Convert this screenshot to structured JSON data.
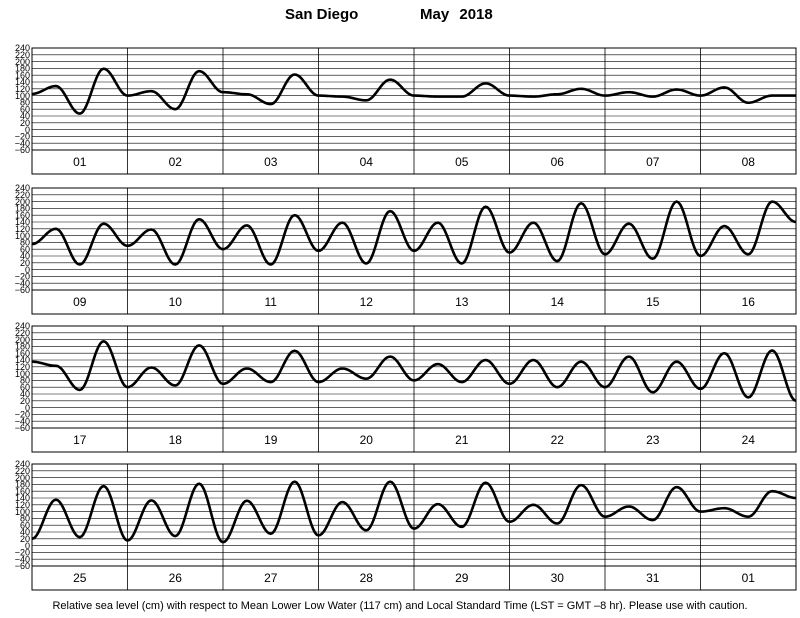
{
  "title": {
    "station": "San Diego",
    "period": "May   2018"
  },
  "footnote": "Relative sea level (cm) with respect to Mean Lower Low Water (117 cm) and Local Standard Time (LST = GMT –8 hr). Please use with caution.",
  "chart_data": {
    "type": "line",
    "xlabel": "",
    "ylabel": "",
    "ylim": [
      -60,
      240
    ],
    "yticks": [
      -60,
      -40,
      -20,
      0,
      20,
      40,
      60,
      80,
      100,
      120,
      140,
      160,
      180,
      200,
      220,
      240
    ],
    "grid": true,
    "panels": [
      {
        "days": [
          "01",
          "02",
          "03",
          "04",
          "05",
          "06",
          "07",
          "08"
        ],
        "x": [
          0,
          0.25,
          0.5,
          0.75,
          1,
          1.25,
          1.5,
          1.75,
          2,
          2.25,
          2.5,
          2.75,
          3,
          3.25,
          3.5,
          3.75,
          4,
          4.25,
          4.5,
          4.75,
          5,
          5.25,
          5.5,
          5.75,
          6,
          6.25,
          6.5,
          6.75,
          7,
          7.25,
          7.5,
          7.75,
          8
        ],
        "values": [
          105,
          128,
          47,
          179,
          100,
          113,
          60,
          172,
          110,
          104,
          75,
          162,
          100,
          97,
          86,
          147,
          100,
          97,
          97,
          136,
          100,
          97,
          104,
          120,
          100,
          110,
          97,
          118,
          100,
          124,
          79,
          100,
          100
        ]
      },
      {
        "days": [
          "09",
          "10",
          "11",
          "12",
          "13",
          "14",
          "15",
          "16"
        ],
        "x": [
          0,
          0.25,
          0.5,
          0.75,
          1,
          1.25,
          1.5,
          1.75,
          2,
          2.25,
          2.5,
          2.75,
          3,
          3.25,
          3.5,
          3.75,
          4,
          4.25,
          4.5,
          4.75,
          5,
          5.25,
          5.5,
          5.75,
          6,
          6.25,
          6.5,
          6.75,
          7,
          7.25,
          7.5,
          7.75,
          8
        ],
        "values": [
          75,
          120,
          15,
          135,
          70,
          118,
          15,
          148,
          60,
          130,
          15,
          160,
          55,
          138,
          18,
          172,
          55,
          138,
          18,
          185,
          50,
          138,
          25,
          195,
          45,
          135,
          32,
          200,
          40,
          128,
          45,
          200,
          140
        ]
      },
      {
        "days": [
          "17",
          "18",
          "19",
          "20",
          "21",
          "22",
          "23",
          "24"
        ],
        "x": [
          0,
          0.25,
          0.5,
          0.75,
          1,
          1.25,
          1.5,
          1.75,
          2,
          2.25,
          2.5,
          2.75,
          3,
          3.25,
          3.5,
          3.75,
          4,
          4.25,
          4.5,
          4.75,
          5,
          5.25,
          5.5,
          5.75,
          6,
          6.25,
          6.5,
          6.75,
          7,
          7.25,
          7.5,
          7.75,
          8
        ],
        "values": [
          135,
          123,
          52,
          195,
          60,
          118,
          65,
          183,
          70,
          115,
          75,
          167,
          75,
          115,
          85,
          150,
          80,
          128,
          75,
          140,
          70,
          140,
          60,
          135,
          60,
          150,
          45,
          135,
          55,
          160,
          30,
          168,
          20
        ]
      },
      {
        "days": [
          "25",
          "26",
          "27",
          "28",
          "29",
          "30",
          "31",
          "01"
        ],
        "x": [
          0,
          0.25,
          0.5,
          0.75,
          1,
          1.25,
          1.5,
          1.75,
          2,
          2.25,
          2.5,
          2.75,
          3,
          3.25,
          3.5,
          3.75,
          4,
          4.25,
          4.5,
          4.75,
          5,
          5.25,
          5.5,
          5.75,
          6,
          6.25,
          6.5,
          6.75,
          7,
          7.25,
          7.5,
          7.75,
          8
        ],
        "values": [
          20,
          135,
          25,
          175,
          15,
          133,
          28,
          182,
          10,
          132,
          35,
          188,
          30,
          128,
          45,
          188,
          50,
          122,
          55,
          185,
          70,
          120,
          65,
          178,
          85,
          115,
          75,
          172,
          100,
          110,
          85,
          160,
          140
        ]
      }
    ]
  }
}
